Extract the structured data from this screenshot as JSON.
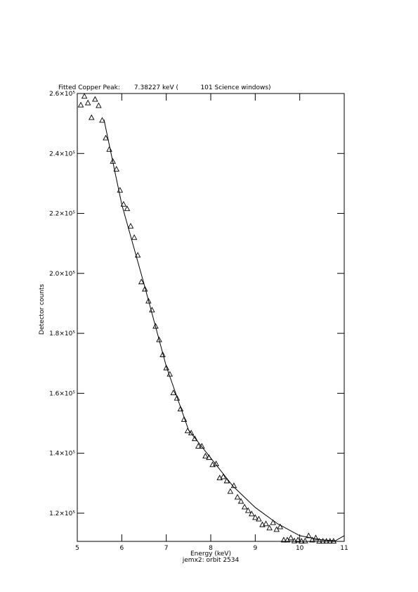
{
  "chart_data": {
    "type": "scatter",
    "title": "Fitted Copper Peak:       7.38227 keV (           101 Science windows)",
    "xlabel": "Energy (keV)",
    "subtitle": "jemx2: orbit 2534",
    "ylabel": "Detector counts",
    "xlim": [
      5,
      11
    ],
    "xticks": [
      5,
      6,
      7,
      8,
      9,
      10,
      11
    ],
    "ylim": [
      110600,
      260000
    ],
    "yticks": [
      {
        "value": 120000,
        "label": "1.2×10⁵"
      },
      {
        "value": 140000,
        "label": "1.4×10⁵"
      },
      {
        "value": 160000,
        "label": "1.6×10⁵"
      },
      {
        "value": 180000,
        "label": "1.8×10⁵"
      },
      {
        "value": 200000,
        "label": "2.0×10⁵"
      },
      {
        "value": 220000,
        "label": "2.2×10⁵"
      },
      {
        "value": 240000,
        "label": "2.4×10⁵"
      },
      {
        "value": 260000,
        "label": "2.6×10⁵"
      }
    ],
    "series": [
      {
        "marker": "triangle",
        "color": "#000000",
        "x": [
          5.08,
          5.16,
          5.24,
          5.32,
          5.4,
          5.48,
          5.56,
          5.64,
          5.72,
          5.8,
          5.88,
          5.96,
          6.04,
          6.12,
          6.2,
          6.28,
          6.36,
          6.44,
          6.52,
          6.6,
          6.68,
          6.76,
          6.84,
          6.92,
          7,
          7.08,
          7.16,
          7.24,
          7.32,
          7.4,
          7.48,
          7.56,
          7.64,
          7.72,
          7.8,
          7.88,
          7.96,
          8.04,
          8.12,
          8.2,
          8.28,
          8.36,
          8.44,
          8.52,
          8.6,
          8.68,
          8.76,
          8.84,
          8.92,
          9,
          9.08,
          9.16,
          9.24,
          9.32,
          9.4,
          9.48,
          9.56,
          9.64,
          9.72,
          9.8,
          9.88,
          9.96,
          10.04,
          10.12,
          10.2,
          10.28,
          10.36,
          10.44,
          10.52,
          10.6,
          10.68,
          10.76
        ],
        "values": [
          256200,
          259100,
          256900,
          252000,
          258100,
          256000,
          251100,
          245200,
          241400,
          237400,
          234800,
          227800,
          223100,
          221600,
          215800,
          212000,
          206100,
          197200,
          194800,
          190800,
          187800,
          182400,
          177900,
          172900,
          168500,
          166400,
          160200,
          158400,
          154800,
          151300,
          147500,
          146800,
          144900,
          142400,
          142400,
          139100,
          138600,
          136200,
          136500,
          131800,
          132200,
          130800,
          127300,
          129200,
          125400,
          124000,
          122100,
          120900,
          119800,
          118600,
          118100,
          116200,
          116500,
          115100,
          116900,
          114600,
          115500,
          111100,
          111100,
          111800,
          110800,
          111100,
          110700,
          110800,
          112500,
          111100,
          111800,
          110700,
          110700,
          110700,
          110700,
          110700
        ]
      },
      {
        "marker": "line",
        "color": "#000000",
        "x": [
          5.6,
          6.0,
          6.5,
          7.0,
          7.5,
          8.0,
          8.5,
          9.0,
          9.5,
          10.0,
          10.5,
          10.8,
          11.0
        ],
        "values": [
          251300,
          223000,
          196500,
          169000,
          147800,
          138400,
          129000,
          121900,
          116500,
          112500,
          111100,
          110800,
          112500
        ]
      }
    ]
  }
}
